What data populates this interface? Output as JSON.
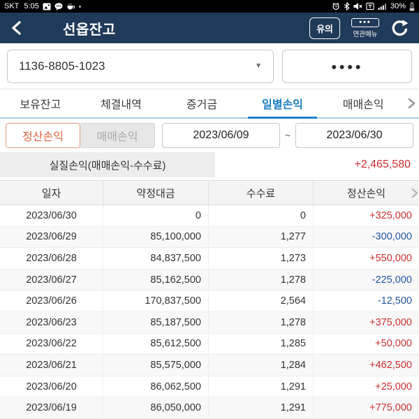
{
  "status_bar": {
    "carrier": "SKT",
    "time": "5:05",
    "battery_percent": "30%"
  },
  "header": {
    "title": "선옵잔고",
    "caution_button_label": "유의",
    "related_menu_dots": "•••",
    "related_menu_label": "연관메뉴"
  },
  "account": {
    "number": "1136-8805-1023",
    "dropdown_caret": "▼",
    "password_mask": "●●●●"
  },
  "tabs": {
    "items": [
      {
        "label": "보유잔고",
        "active": false
      },
      {
        "label": "체결내역",
        "active": false
      },
      {
        "label": "증거금",
        "active": false
      },
      {
        "label": "일별손익",
        "active": true
      },
      {
        "label": "매매손익",
        "active": false
      }
    ]
  },
  "filter": {
    "toggle": [
      {
        "label": "정산손익",
        "active": true
      },
      {
        "label": "매매손익",
        "active": false
      }
    ],
    "date_from": "2023/06/09",
    "range_separator": "~",
    "date_to": "2023/06/30"
  },
  "summary": {
    "label": "실질손익(매매손익-수수료)",
    "value": "+2,465,580"
  },
  "table": {
    "headers": [
      "일자",
      "약정대금",
      "수수료",
      "정산손익"
    ],
    "rows": [
      {
        "date": "2023/06/30",
        "amount": "0",
        "fee": "0",
        "pnl": "+325,000"
      },
      {
        "date": "2023/06/29",
        "amount": "85,100,000",
        "fee": "1,277",
        "pnl": "-300,000"
      },
      {
        "date": "2023/06/28",
        "amount": "84,837,500",
        "fee": "1,273",
        "pnl": "+550,000"
      },
      {
        "date": "2023/06/27",
        "amount": "85,162,500",
        "fee": "1,278",
        "pnl": "-225,000"
      },
      {
        "date": "2023/06/26",
        "amount": "170,837,500",
        "fee": "2,564",
        "pnl": "-12,500"
      },
      {
        "date": "2023/06/23",
        "amount": "85,187,500",
        "fee": "1,278",
        "pnl": "+375,000"
      },
      {
        "date": "2023/06/22",
        "amount": "85,612,500",
        "fee": "1,285",
        "pnl": "+50,000"
      },
      {
        "date": "2023/06/21",
        "amount": "85,575,000",
        "fee": "1,284",
        "pnl": "+462,500"
      },
      {
        "date": "2023/06/20",
        "amount": "86,062,500",
        "fee": "1,291",
        "pnl": "+25,000"
      },
      {
        "date": "2023/06/19",
        "amount": "86,050,000",
        "fee": "1,291",
        "pnl": "+775,000"
      }
    ]
  },
  "colors": {
    "header_bg": "#203a5a",
    "active_tab": "#1b80c4",
    "positive": "#cc2e2e",
    "negative": "#2456a6",
    "toggle_active_text": "#dd5f38"
  }
}
